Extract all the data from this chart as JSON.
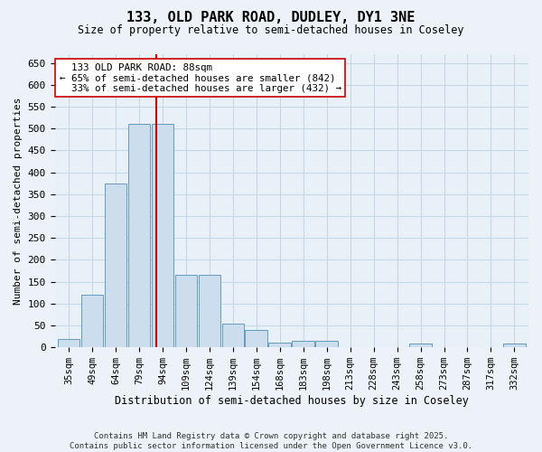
{
  "title": "133, OLD PARK ROAD, DUDLEY, DY1 3NE",
  "subtitle": "Size of property relative to semi-detached houses in Coseley",
  "xlabel": "Distribution of semi-detached houses by size in Coseley",
  "ylabel": "Number of semi-detached properties",
  "categories": [
    "35sqm",
    "49sqm",
    "64sqm",
    "79sqm",
    "94sqm",
    "109sqm",
    "124sqm",
    "139sqm",
    "154sqm",
    "168sqm",
    "183sqm",
    "198sqm",
    "213sqm",
    "228sqm",
    "243sqm",
    "258sqm",
    "273sqm",
    "287sqm",
    "317sqm",
    "332sqm"
  ],
  "values": [
    20,
    120,
    375,
    510,
    510,
    165,
    165,
    55,
    40,
    10,
    15,
    15,
    0,
    0,
    0,
    8,
    0,
    0,
    0,
    8
  ],
  "bar_color": "#ccdded",
  "bar_edge_color": "#6699bb",
  "property_label": "133 OLD PARK ROAD: 88sqm",
  "pct_smaller": 65,
  "n_smaller": 842,
  "pct_larger": 33,
  "n_larger": 432,
  "vline_color": "#cc0000",
  "vline_x": 3.75,
  "grid_color": "#c5d8e8",
  "bg_color": "#e8f0f8",
  "fig_color": "#edf2f8",
  "footer": "Contains HM Land Registry data © Crown copyright and database right 2025.\nContains public sector information licensed under the Open Government Licence v3.0.",
  "ylim": [
    0,
    670
  ],
  "yticks": [
    0,
    50,
    100,
    150,
    200,
    250,
    300,
    350,
    400,
    450,
    500,
    550,
    600,
    650
  ]
}
